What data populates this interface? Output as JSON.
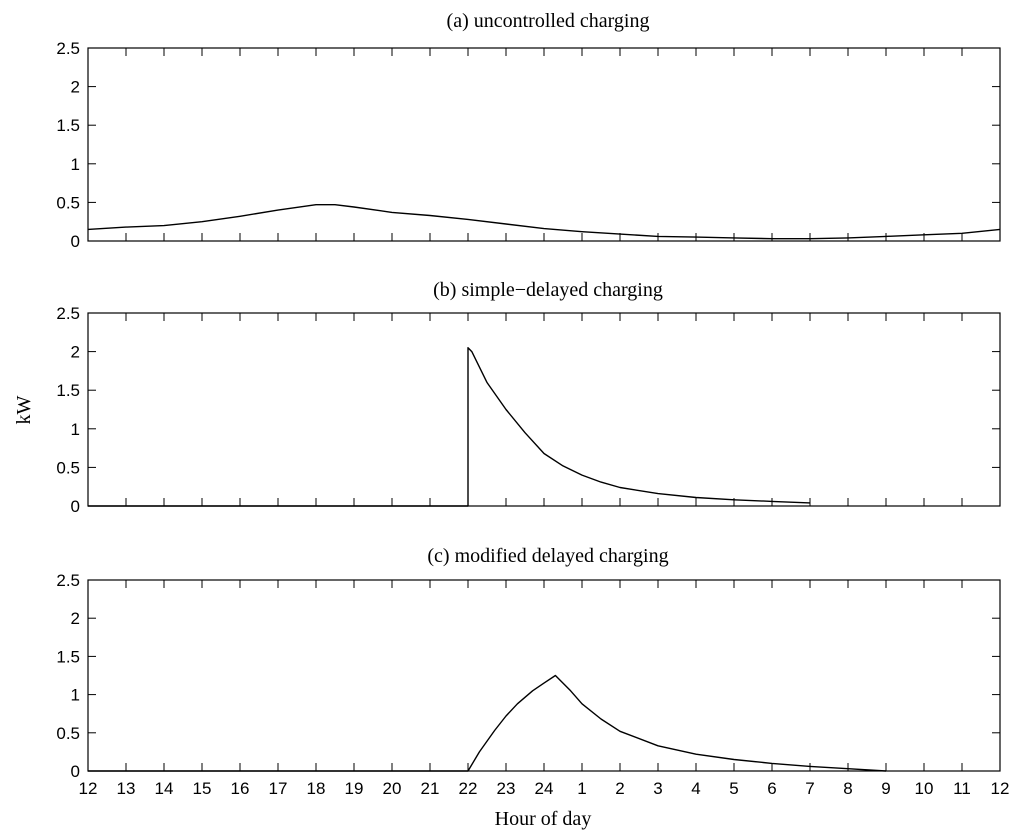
{
  "chart_data": [
    {
      "type": "line",
      "title": "(a) uncontrolled charging",
      "ylim": [
        0,
        2.5
      ],
      "yticks": [
        "0",
        "0.5",
        "1",
        "1.5",
        "2",
        "2.5"
      ],
      "x": [
        "12",
        "13",
        "14",
        "15",
        "16",
        "17",
        "18",
        "19",
        "20",
        "21",
        "22",
        "23",
        "24",
        "1",
        "2",
        "3",
        "4",
        "5",
        "6",
        "7",
        "8",
        "9",
        "10",
        "11",
        "12"
      ],
      "series": [
        {
          "x": [
            0,
            1,
            2,
            3,
            4,
            5,
            6,
            6.5,
            7,
            8,
            9,
            10,
            11,
            12,
            13,
            14,
            15,
            16,
            17,
            18,
            19,
            20,
            21,
            22,
            23,
            24
          ],
          "y": [
            0.15,
            0.18,
            0.2,
            0.25,
            0.32,
            0.4,
            0.47,
            0.47,
            0.44,
            0.37,
            0.33,
            0.28,
            0.22,
            0.16,
            0.12,
            0.09,
            0.06,
            0.05,
            0.04,
            0.03,
            0.03,
            0.04,
            0.06,
            0.08,
            0.1,
            0.15
          ]
        }
      ]
    },
    {
      "type": "line",
      "title": "(b) simple−delayed charging",
      "ylim": [
        0,
        2.5
      ],
      "yticks": [
        "0",
        "0.5",
        "1",
        "1.5",
        "2",
        "2.5"
      ],
      "x": [
        "12",
        "13",
        "14",
        "15",
        "16",
        "17",
        "18",
        "19",
        "20",
        "21",
        "22",
        "23",
        "24",
        "1",
        "2",
        "3",
        "4",
        "5",
        "6",
        "7",
        "8",
        "9",
        "10",
        "11",
        "12"
      ],
      "series": [
        {
          "x": [
            0,
            9.999,
            10.0,
            10.1,
            10.5,
            11,
            11.5,
            12,
            12.5,
            13,
            13.5,
            14,
            15,
            16,
            17,
            18,
            19
          ],
          "y": [
            0,
            0,
            2.05,
            2.0,
            1.6,
            1.25,
            0.95,
            0.68,
            0.52,
            0.4,
            0.31,
            0.24,
            0.16,
            0.11,
            0.08,
            0.06,
            0.04
          ]
        }
      ]
    },
    {
      "type": "line",
      "title": "(c) modified delayed charging",
      "ylim": [
        0,
        2.5
      ],
      "yticks": [
        "0",
        "0.5",
        "1",
        "1.5",
        "2",
        "2.5"
      ],
      "x": [
        "12",
        "13",
        "14",
        "15",
        "16",
        "17",
        "18",
        "19",
        "20",
        "21",
        "22",
        "23",
        "24",
        "1",
        "2",
        "3",
        "4",
        "5",
        "6",
        "7",
        "8",
        "9",
        "10",
        "11",
        "12"
      ],
      "xlabel": "Hour of day",
      "series": [
        {
          "x": [
            0,
            10,
            10.3,
            10.7,
            11,
            11.3,
            11.7,
            12,
            12.3,
            12.7,
            13,
            13.5,
            14,
            15,
            16,
            17,
            18,
            19,
            20,
            21
          ],
          "y": [
            0,
            0,
            0.25,
            0.53,
            0.72,
            0.88,
            1.05,
            1.15,
            1.25,
            1.05,
            0.88,
            0.68,
            0.52,
            0.33,
            0.22,
            0.15,
            0.1,
            0.06,
            0.03,
            0.0
          ]
        }
      ]
    }
  ],
  "shared": {
    "ylabel": "kW"
  }
}
